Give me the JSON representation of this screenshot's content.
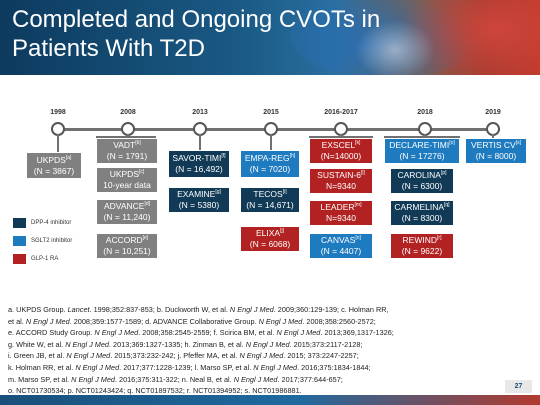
{
  "header": {
    "title_line1": "Completed and Ongoing CVOTs in",
    "title_line2": "Patients With T2D"
  },
  "colors": {
    "completed_gray": "#808080",
    "dpp4_navy": "#113a56",
    "sglt2_blue": "#1f7bbf",
    "glp1_red": "#b22222"
  },
  "timeline": {
    "years": [
      "1998",
      "2008",
      "2013",
      "2015",
      "2016-2017",
      "2018",
      "2019"
    ]
  },
  "trials": {
    "ukpds": {
      "name": "UKPDS",
      "ref": "[a]",
      "n": "(N = 3867)"
    },
    "vadt": {
      "name": "VADT",
      "ref": "[b]",
      "n": "(N = 1791)"
    },
    "ukpds_c": {
      "name": "UKPDS",
      "ref": "[c]",
      "n": "10-year data"
    },
    "advance": {
      "name": "ADVANCE",
      "ref": "[d]",
      "n": "(N = 11,240)"
    },
    "accord": {
      "name": "ACCORD",
      "ref": "[e]",
      "n": "(N = 10,251)"
    },
    "savor": {
      "name": "SAVOR-TIMI",
      "ref": "[f]",
      "n": "(N = 16,492)"
    },
    "examine": {
      "name": "EXAMINE",
      "ref": "[g]",
      "n": "(N = 5380)"
    },
    "empareg": {
      "name": "EMPA-REG",
      "ref": "[h]",
      "n": "(N = 7020)"
    },
    "tecos": {
      "name": "TECOS",
      "ref": "[i]",
      "n": "(N = 14,671)"
    },
    "elixa": {
      "name": "ELIXA",
      "ref": "[j]",
      "n": "(N = 6068)"
    },
    "exscel": {
      "name": "EXSCEL",
      "ref": "[k]",
      "n": "(N=14000)"
    },
    "sustain6": {
      "name": "SUSTAIN-6",
      "ref": "[l]",
      "n": "N=9340"
    },
    "leader": {
      "name": "LEADER",
      "ref": "[m]",
      "n": "N=9340"
    },
    "canvas": {
      "name": "CANVAS",
      "ref": "[n]",
      "n": "(N = 4407)"
    },
    "declare": {
      "name": "DECLARE-TIMI",
      "ref": "[o]",
      "n": "(N = 17276)"
    },
    "carolina": {
      "name": "CAROLINA",
      "ref": "[p]",
      "n": "(N = 6300)"
    },
    "carmelina": {
      "name": "CARMELINA",
      "ref": "[q]",
      "n": "(N = 8300)"
    },
    "rewind": {
      "name": "REWIND",
      "ref": "[r]",
      "n": "(N = 9622)"
    },
    "vertis": {
      "name": "VERTIS CV",
      "ref": "[s]",
      "n": "(N = 8000)"
    }
  },
  "legend": [
    {
      "label": "DPP-4 inhibitor",
      "color": "#113a56"
    },
    {
      "label": "SGLT2 inhibitor",
      "color": "#1f7bbf"
    },
    {
      "label": "GLP-1 RA",
      "color": "#b22222"
    }
  ],
  "references": {
    "l1_a": "a. UKPDS Group. ",
    "l1_b": "Lancet",
    "l1_c": ". 1998;352:837-853; b. Duckworth W, et al. ",
    "l1_d": "N Engl J Med",
    "l1_e": ". 2009;360:129-139; c. Holman RR,",
    "l2_a": "et al. ",
    "l2_b": "N Engl J Med",
    "l2_c": ". 2008;359:1577-1589; d. ADVANCE Collaborative Group. ",
    "l2_d": "N Engl J Med",
    "l2_e": ". 2008;358:2560-2572;",
    "l3_a": "e. ACCORD Study Group. ",
    "l3_b": "N Engl J Med",
    "l3_c": ". 2008;358:2545-2559; f. Scirica BM, et al. ",
    "l3_d": "N Engl J Med",
    "l3_e": ". 2013;369,1317-1326;",
    "l4_a": "g. White W, et al. ",
    "l4_b": "N Engl J Med",
    "l4_c": ". 2013;369:1327-1335; h. Zinman B, et al. ",
    "l4_d": "N Engl J Med",
    "l4_e": ". 2015;373:2117-2128;",
    "l5_a": "i. Green JB, et al. ",
    "l5_b": "N Engl J Med",
    "l5_c": ". 2015;373:232-242; j. Pfeffer MA, et al. ",
    "l5_d": "N Engl J Med",
    "l5_e": ". 2015; 373:2247-2257;",
    "l6_a": "k. Holman RR, et al. ",
    "l6_b": "N Engl J Med",
    "l6_c": ". 2017;377:1228-1239; l. Marso SP, et al. ",
    "l6_d": "N Engl J Med",
    "l6_e": ". 2016;375:1834-1844;",
    "l7_a": "m. Marso SP, et al. ",
    "l7_b": "N Engl J Med",
    "l7_c": ". 2016;375:311-322; n. Neal B, et al. ",
    "l7_d": "N Engl J Med",
    "l7_e": ". 2017;377:644-657;",
    "l8": "o. NCT01730534; p. NCT01243424; q. NCT01897532; r. NCT01394952; s. NCT01986881."
  },
  "page_number": "27"
}
